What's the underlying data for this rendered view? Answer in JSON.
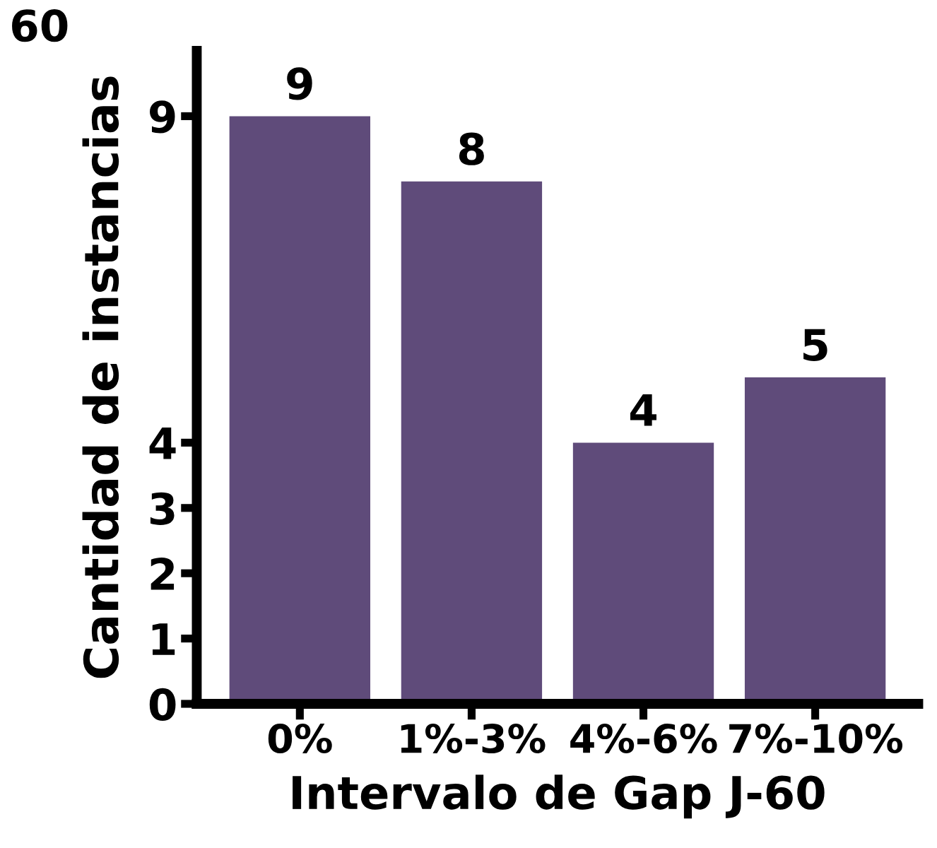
{
  "chart_data": {
    "type": "bar",
    "title": "60",
    "xlabel": "Intervalo de Gap J-60",
    "ylabel": "Cantidad de instancias",
    "categories": [
      "0%",
      "1%-3%",
      "4%-6%",
      "7%-10%"
    ],
    "values": [
      9,
      8,
      4,
      5
    ],
    "color": "#5f4b7a",
    "ylim": [
      0,
      10
    ],
    "yticks": [
      0,
      1,
      2,
      3,
      4,
      9
    ],
    "data_labels": true,
    "grid": false,
    "legend": false
  }
}
